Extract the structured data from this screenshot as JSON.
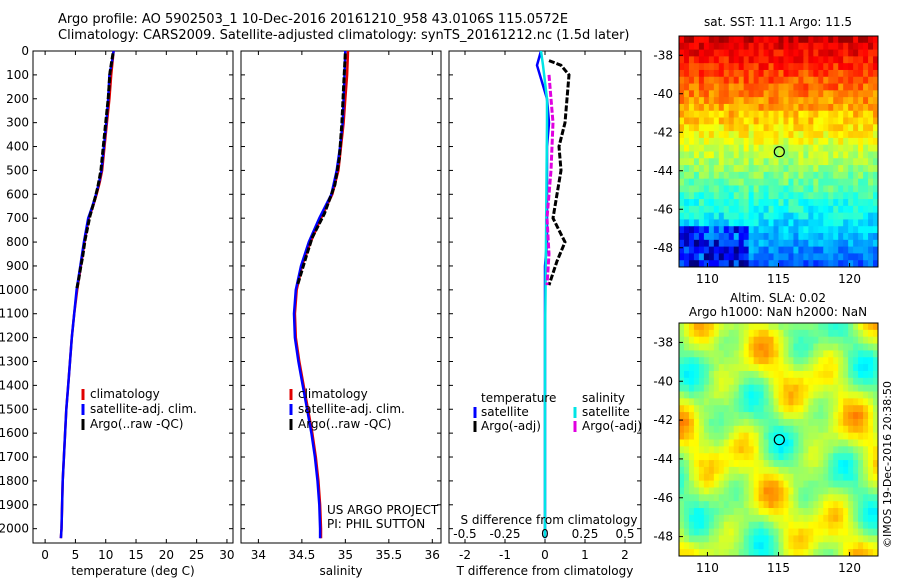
{
  "figure": {
    "title_line1": "Argo profile: AO 5902503_1 10-Dec-2016 20161210_958 43.0106S 115.0572E",
    "title_line2": "Climatology: CARS2009. Satellite-adjusted climatology: synTS_20161212.nc (1.5d later)",
    "side_text": "©IMOS 19-Dec-2016 20:38:50"
  },
  "chart_data": [
    {
      "id": "temperature",
      "type": "line",
      "xlabel": "temperature (deg C)",
      "ylabel": "",
      "xlim": [
        -2,
        31
      ],
      "ylim": [
        2060,
        0
      ],
      "xticks": [
        "0",
        "5",
        "10",
        "15",
        "20",
        "25",
        "30"
      ],
      "xtick_values": [
        0,
        5,
        10,
        15,
        20,
        25,
        30
      ],
      "yticks": [
        "0",
        "100",
        "200",
        "300",
        "400",
        "500",
        "600",
        "700",
        "800",
        "900",
        "1000",
        "1100",
        "1200",
        "1300",
        "1400",
        "1500",
        "1600",
        "1700",
        "1800",
        "1900",
        "2000"
      ],
      "ytick_values": [
        0,
        100,
        200,
        300,
        400,
        500,
        600,
        700,
        800,
        900,
        1000,
        1100,
        1200,
        1300,
        1400,
        1500,
        1600,
        1700,
        1800,
        1900,
        2000
      ],
      "legend": [
        "climatology",
        "satellite-adj. clim.",
        "Argo(..raw -QC)"
      ],
      "legend_colors": [
        "#e00000",
        "#0000ff",
        "#000000"
      ],
      "series": [
        {
          "name": "climatology",
          "color": "#e00000",
          "points": [
            [
              11.3,
              0
            ],
            [
              11.1,
              50
            ],
            [
              10.9,
              100
            ],
            [
              10.6,
              200
            ],
            [
              10.2,
              300
            ],
            [
              9.8,
              400
            ],
            [
              9.4,
              500
            ],
            [
              9.0,
              550
            ],
            [
              8.5,
              600
            ],
            [
              7.9,
              650
            ],
            [
              7.2,
              700
            ],
            [
              6.5,
              800
            ],
            [
              5.9,
              900
            ],
            [
              5.3,
              1000
            ],
            [
              4.8,
              1100
            ],
            [
              4.4,
              1200
            ],
            [
              4.1,
              1300
            ],
            [
              3.8,
              1400
            ],
            [
              3.5,
              1500
            ],
            [
              3.3,
              1600
            ],
            [
              3.1,
              1700
            ],
            [
              2.9,
              1800
            ],
            [
              2.8,
              1900
            ],
            [
              2.7,
              2000
            ],
            [
              2.6,
              2040
            ]
          ]
        },
        {
          "name": "satellite-adj. clim.",
          "color": "#0000ff",
          "points": [
            [
              11.3,
              0
            ],
            [
              11.0,
              50
            ],
            [
              10.6,
              100
            ],
            [
              10.4,
              200
            ],
            [
              10.1,
              300
            ],
            [
              9.7,
              400
            ],
            [
              9.3,
              500
            ],
            [
              8.9,
              550
            ],
            [
              8.4,
              600
            ],
            [
              7.8,
              650
            ],
            [
              7.1,
              700
            ],
            [
              6.4,
              800
            ],
            [
              5.8,
              900
            ],
            [
              5.2,
              1000
            ],
            [
              4.8,
              1100
            ],
            [
              4.4,
              1200
            ],
            [
              4.1,
              1300
            ],
            [
              3.8,
              1400
            ],
            [
              3.5,
              1500
            ],
            [
              3.3,
              1600
            ],
            [
              3.1,
              1700
            ],
            [
              2.9,
              1800
            ],
            [
              2.8,
              1900
            ],
            [
              2.7,
              2000
            ],
            [
              2.6,
              2040
            ]
          ]
        },
        {
          "name": "Argo(..raw -QC)",
          "color": "#000000",
          "points": [
            [
              11.2,
              10
            ],
            [
              11.0,
              40
            ],
            [
              10.7,
              90
            ],
            [
              10.4,
              200
            ],
            [
              10.0,
              300
            ],
            [
              9.6,
              400
            ],
            [
              9.2,
              500
            ],
            [
              8.7,
              570
            ],
            [
              8.2,
              620
            ],
            [
              7.4,
              690
            ],
            [
              6.6,
              790
            ],
            [
              6.2,
              860
            ],
            [
              5.9,
              900
            ],
            [
              5.5,
              960
            ],
            [
              5.2,
              1000
            ]
          ]
        }
      ],
      "annotations": []
    },
    {
      "id": "salinity",
      "type": "line",
      "xlabel": "salinity",
      "ylabel": "",
      "xlim": [
        33.8,
        36.1
      ],
      "ylim": [
        2060,
        0
      ],
      "xticks": [
        "34",
        "34.5",
        "35",
        "35.5",
        "36"
      ],
      "xtick_values": [
        34,
        34.5,
        35,
        35.5,
        36
      ],
      "legend": [
        "climatology",
        "satellite-adj. clim.",
        "Argo(..raw -QC)"
      ],
      "legend_colors": [
        "#e00000",
        "#0000ff",
        "#000000"
      ],
      "series": [
        {
          "name": "climatology",
          "color": "#e00000",
          "points": [
            [
              35.03,
              0
            ],
            [
              35.02,
              100
            ],
            [
              35.0,
              200
            ],
            [
              34.98,
              300
            ],
            [
              34.95,
              400
            ],
            [
              34.92,
              500
            ],
            [
              34.85,
              600
            ],
            [
              34.72,
              700
            ],
            [
              34.6,
              800
            ],
            [
              34.5,
              900
            ],
            [
              34.44,
              1000
            ],
            [
              34.42,
              1100
            ],
            [
              34.43,
              1200
            ],
            [
              34.47,
              1300
            ],
            [
              34.52,
              1400
            ],
            [
              34.57,
              1500
            ],
            [
              34.62,
              1600
            ],
            [
              34.66,
              1700
            ],
            [
              34.69,
              1800
            ],
            [
              34.71,
              1900
            ],
            [
              34.72,
              2000
            ],
            [
              34.72,
              2040
            ]
          ]
        },
        {
          "name": "satellite-adj. clim.",
          "color": "#0000ff",
          "points": [
            [
              35.0,
              0
            ],
            [
              34.99,
              100
            ],
            [
              34.98,
              200
            ],
            [
              34.97,
              300
            ],
            [
              34.94,
              400
            ],
            [
              34.9,
              500
            ],
            [
              34.84,
              600
            ],
            [
              34.7,
              700
            ],
            [
              34.58,
              800
            ],
            [
              34.49,
              900
            ],
            [
              34.43,
              1000
            ],
            [
              34.41,
              1100
            ],
            [
              34.42,
              1200
            ],
            [
              34.46,
              1300
            ],
            [
              34.51,
              1400
            ],
            [
              34.56,
              1500
            ],
            [
              34.61,
              1600
            ],
            [
              34.65,
              1700
            ],
            [
              34.68,
              1800
            ],
            [
              34.7,
              1900
            ],
            [
              34.71,
              2000
            ],
            [
              34.71,
              2040
            ]
          ]
        },
        {
          "name": "Argo(..raw -QC)",
          "color": "#000000",
          "points": [
            [
              35.0,
              10
            ],
            [
              34.98,
              150
            ],
            [
              34.96,
              300
            ],
            [
              34.93,
              450
            ],
            [
              34.88,
              560
            ],
            [
              34.76,
              680
            ],
            [
              34.62,
              780
            ],
            [
              34.55,
              860
            ],
            [
              34.5,
              920
            ],
            [
              34.45,
              980
            ]
          ]
        }
      ],
      "annotations": [
        "US ARGO PROJECT",
        "PI: PHIL SUTTON"
      ]
    },
    {
      "id": "difference",
      "type": "line",
      "xlabel": "T difference from climatology",
      "xlabel_top": "S difference from climatology",
      "xlim": [
        -2.4,
        2.4
      ],
      "ylim": [
        2060,
        0
      ],
      "xticks": [
        "-2",
        "-1",
        "0",
        "1",
        "2"
      ],
      "xtick_values": [
        -2,
        -1,
        0,
        1,
        2
      ],
      "xticks_top": [
        "-0.5",
        "-0.25",
        "0",
        "0.25",
        "0.5"
      ],
      "xtick_top_values": [
        -0.5,
        -0.25,
        0,
        0.25,
        0.5
      ],
      "legend_title_left": "temperature",
      "legend_title_right": "salinity",
      "legend_left": [
        "satellite",
        "Argo(-adj)"
      ],
      "legend_left_colors": [
        "#0000ff",
        "#000000"
      ],
      "legend_right": [
        "satellite",
        "Argo(-adj)"
      ],
      "legend_right_colors": [
        "#00e5e5",
        "#e000e0"
      ],
      "series": [
        {
          "name": "T satellite",
          "color": "#0000ff",
          "points": [
            [
              -0.1,
              0
            ],
            [
              -0.2,
              60
            ],
            [
              0.05,
              200
            ],
            [
              0.1,
              300
            ],
            [
              0.05,
              400
            ],
            [
              0.05,
              500
            ],
            [
              0.05,
              600
            ],
            [
              0.05,
              700
            ],
            [
              0.05,
              800
            ],
            [
              0.0,
              900
            ],
            [
              0.0,
              1000
            ],
            [
              0.0,
              1200
            ],
            [
              0.0,
              2040
            ]
          ]
        },
        {
          "name": "T Argo(-adj)",
          "color": "#000000",
          "points": [
            [
              0.1,
              40
            ],
            [
              0.4,
              60
            ],
            [
              0.6,
              100
            ],
            [
              0.5,
              300
            ],
            [
              0.35,
              400
            ],
            [
              0.4,
              500
            ],
            [
              0.3,
              600
            ],
            [
              0.2,
              700
            ],
            [
              0.5,
              800
            ],
            [
              0.3,
              880
            ],
            [
              0.1,
              980
            ]
          ]
        },
        {
          "name": "S satellite",
          "color": "#00e5e5",
          "points": [
            [
              -0.1,
              0
            ],
            [
              -0.05,
              60
            ],
            [
              0.05,
              200
            ],
            [
              0.05,
              300
            ],
            [
              0.04,
              500
            ],
            [
              0.03,
              700
            ],
            [
              0.02,
              900
            ],
            [
              0.0,
              1200
            ],
            [
              0.0,
              2040
            ]
          ]
        },
        {
          "name": "S Argo(-adj)",
          "color": "#e000e0",
          "points": [
            [
              0.1,
              100
            ],
            [
              0.2,
              300
            ],
            [
              0.15,
              500
            ],
            [
              0.05,
              700
            ],
            [
              0.1,
              850
            ],
            [
              0.05,
              980
            ]
          ]
        }
      ]
    },
    {
      "id": "sst_map",
      "type": "heatmap",
      "title": "sat. SST: 11.1  Argo: 11.5",
      "xlim": [
        108,
        122
      ],
      "ylim": [
        -49,
        -37
      ],
      "xticks": [
        "110",
        "115",
        "120"
      ],
      "xtick_values": [
        110,
        115,
        120
      ],
      "yticks": [
        "-38",
        "-40",
        "-42",
        "-44",
        "-46",
        "-48"
      ],
      "ytick_values": [
        -38,
        -40,
        -42,
        -44,
        -46,
        -48
      ],
      "marker": {
        "lon": 115.0572,
        "lat": -43.0106
      }
    },
    {
      "id": "sla_map",
      "type": "heatmap",
      "title_line1": "Altim. SLA: 0.02",
      "title_line2": "Argo h1000: NaN  h2000: NaN",
      "xlim": [
        108,
        122
      ],
      "ylim": [
        -49,
        -37
      ],
      "xticks": [
        "110",
        "115",
        "120"
      ],
      "xtick_values": [
        110,
        115,
        120
      ],
      "yticks": [
        "-38",
        "-40",
        "-42",
        "-44",
        "-46",
        "-48"
      ],
      "ytick_values": [
        -38,
        -40,
        -42,
        -44,
        -46,
        -48
      ],
      "marker": {
        "lon": 115.0572,
        "lat": -43.0106
      }
    }
  ]
}
